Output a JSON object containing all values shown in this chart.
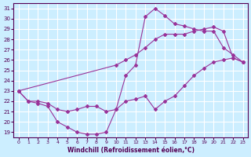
{
  "xlabel": "Windchill (Refroidissement éolien,°C)",
  "bg_color": "#cceeff",
  "line_color": "#993399",
  "grid_color": "#ffffff",
  "xlim": [
    -0.5,
    23.5
  ],
  "ylim": [
    18.5,
    31.5
  ],
  "yticks": [
    19,
    20,
    21,
    22,
    23,
    24,
    25,
    26,
    27,
    28,
    29,
    30,
    31
  ],
  "xticks": [
    0,
    1,
    2,
    3,
    4,
    5,
    6,
    7,
    8,
    9,
    10,
    11,
    12,
    13,
    14,
    15,
    16,
    17,
    18,
    19,
    20,
    21,
    22,
    23
  ],
  "lines": [
    {
      "x": [
        0,
        1,
        2,
        3,
        4,
        5,
        6,
        7,
        8,
        9,
        10,
        11,
        12,
        13,
        14,
        15,
        16,
        17,
        18,
        19,
        20,
        21,
        22,
        23
      ],
      "y": [
        23.0,
        22.0,
        21.8,
        21.5,
        20.0,
        19.5,
        19.0,
        18.8,
        18.8,
        19.0,
        21.2,
        24.5,
        25.5,
        30.2,
        31.0,
        30.3,
        29.5,
        29.3,
        29.0,
        28.8,
        28.8,
        27.2,
        26.5,
        25.8
      ]
    },
    {
      "x": [
        0,
        1,
        2,
        3,
        4,
        5,
        6,
        7,
        8,
        9,
        10,
        11,
        12,
        13,
        14,
        15,
        16,
        17,
        18,
        19,
        20,
        21,
        22,
        23
      ],
      "y": [
        23.0,
        22.0,
        22.0,
        21.8,
        21.2,
        21.0,
        21.2,
        21.5,
        21.5,
        21.0,
        21.2,
        22.0,
        22.2,
        22.5,
        21.2,
        22.0,
        22.5,
        23.5,
        24.5,
        25.2,
        25.8,
        26.0,
        26.2,
        25.8
      ]
    },
    {
      "x": [
        0,
        10,
        11,
        12,
        13,
        14,
        15,
        16,
        17,
        18,
        19,
        20,
        21,
        22,
        23
      ],
      "y": [
        23.0,
        25.5,
        26.0,
        26.5,
        27.2,
        28.0,
        28.5,
        28.5,
        28.5,
        28.8,
        29.0,
        29.2,
        28.8,
        26.2,
        25.8
      ]
    }
  ]
}
